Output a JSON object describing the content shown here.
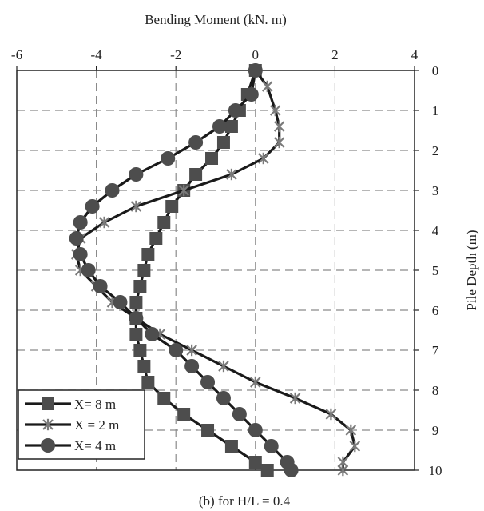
{
  "chart_data": {
    "type": "line",
    "title": "Bending Moment (kN. m)",
    "xlabel": "Bending Moment (kN. m)",
    "ylabel": "Pile Depth (m)",
    "caption": "(b) for H/L = 0.4",
    "xlim": [
      -6,
      4
    ],
    "ylim": [
      0,
      10
    ],
    "x_ticks": [
      "-6",
      "-4",
      "-2",
      "0",
      "2",
      "4"
    ],
    "y_ticks": [
      "0",
      "1",
      "2",
      "3",
      "4",
      "5",
      "6",
      "7",
      "8",
      "9",
      "10"
    ],
    "x_axis_position": "top",
    "y_axis_position": "right",
    "y_inverted": true,
    "grid": true,
    "legend": "bottom-left",
    "series": [
      {
        "name": "X= 8 m",
        "marker": "square",
        "points": [
          [
            0.0,
            0.0
          ],
          [
            -0.2,
            0.6
          ],
          [
            -0.4,
            1.0
          ],
          [
            -0.6,
            1.4
          ],
          [
            -0.8,
            1.8
          ],
          [
            -1.1,
            2.2
          ],
          [
            -1.5,
            2.6
          ],
          [
            -1.8,
            3.0
          ],
          [
            -2.1,
            3.4
          ],
          [
            -2.3,
            3.8
          ],
          [
            -2.5,
            4.2
          ],
          [
            -2.7,
            4.6
          ],
          [
            -2.8,
            5.0
          ],
          [
            -2.9,
            5.4
          ],
          [
            -3.0,
            5.8
          ],
          [
            -3.0,
            6.2
          ],
          [
            -3.0,
            6.6
          ],
          [
            -2.9,
            7.0
          ],
          [
            -2.8,
            7.4
          ],
          [
            -2.7,
            7.8
          ],
          [
            -2.3,
            8.2
          ],
          [
            -1.8,
            8.6
          ],
          [
            -1.2,
            9.0
          ],
          [
            -0.6,
            9.4
          ],
          [
            0.0,
            9.8
          ],
          [
            0.3,
            10.0
          ]
        ]
      },
      {
        "name": "X = 2 m",
        "marker": "star",
        "points": [
          [
            0.0,
            0.0
          ],
          [
            0.3,
            0.4
          ],
          [
            0.5,
            1.0
          ],
          [
            0.6,
            1.4
          ],
          [
            0.6,
            1.8
          ],
          [
            0.2,
            2.2
          ],
          [
            -0.6,
            2.6
          ],
          [
            -1.8,
            3.0
          ],
          [
            -3.0,
            3.4
          ],
          [
            -3.8,
            3.8
          ],
          [
            -4.4,
            4.2
          ],
          [
            -4.5,
            4.6
          ],
          [
            -4.4,
            5.0
          ],
          [
            -4.0,
            5.4
          ],
          [
            -3.6,
            5.8
          ],
          [
            -3.0,
            6.2
          ],
          [
            -2.4,
            6.6
          ],
          [
            -1.6,
            7.0
          ],
          [
            -0.8,
            7.4
          ],
          [
            0.0,
            7.8
          ],
          [
            1.0,
            8.2
          ],
          [
            1.9,
            8.6
          ],
          [
            2.4,
            9.0
          ],
          [
            2.5,
            9.4
          ],
          [
            2.2,
            9.8
          ],
          [
            2.2,
            10.0
          ]
        ]
      },
      {
        "name": "X= 4 m",
        "marker": "circle",
        "points": [
          [
            0.0,
            0.0
          ],
          [
            -0.1,
            0.6
          ],
          [
            -0.5,
            1.0
          ],
          [
            -0.9,
            1.4
          ],
          [
            -1.5,
            1.8
          ],
          [
            -2.2,
            2.2
          ],
          [
            -3.0,
            2.6
          ],
          [
            -3.6,
            3.0
          ],
          [
            -4.1,
            3.4
          ],
          [
            -4.4,
            3.8
          ],
          [
            -4.5,
            4.2
          ],
          [
            -4.4,
            4.6
          ],
          [
            -4.2,
            5.0
          ],
          [
            -3.9,
            5.4
          ],
          [
            -3.4,
            5.8
          ],
          [
            -3.0,
            6.2
          ],
          [
            -2.6,
            6.6
          ],
          [
            -2.0,
            7.0
          ],
          [
            -1.6,
            7.4
          ],
          [
            -1.2,
            7.8
          ],
          [
            -0.8,
            8.2
          ],
          [
            -0.4,
            8.6
          ],
          [
            0.0,
            9.0
          ],
          [
            0.4,
            9.4
          ],
          [
            0.8,
            9.8
          ],
          [
            0.9,
            10.0
          ]
        ]
      }
    ]
  },
  "colors": {
    "line": "#1a1a1a",
    "marker": "#4d4d4d",
    "star": "#7a7a7a",
    "grid": "#8a8a8a",
    "frame": "#222222"
  }
}
